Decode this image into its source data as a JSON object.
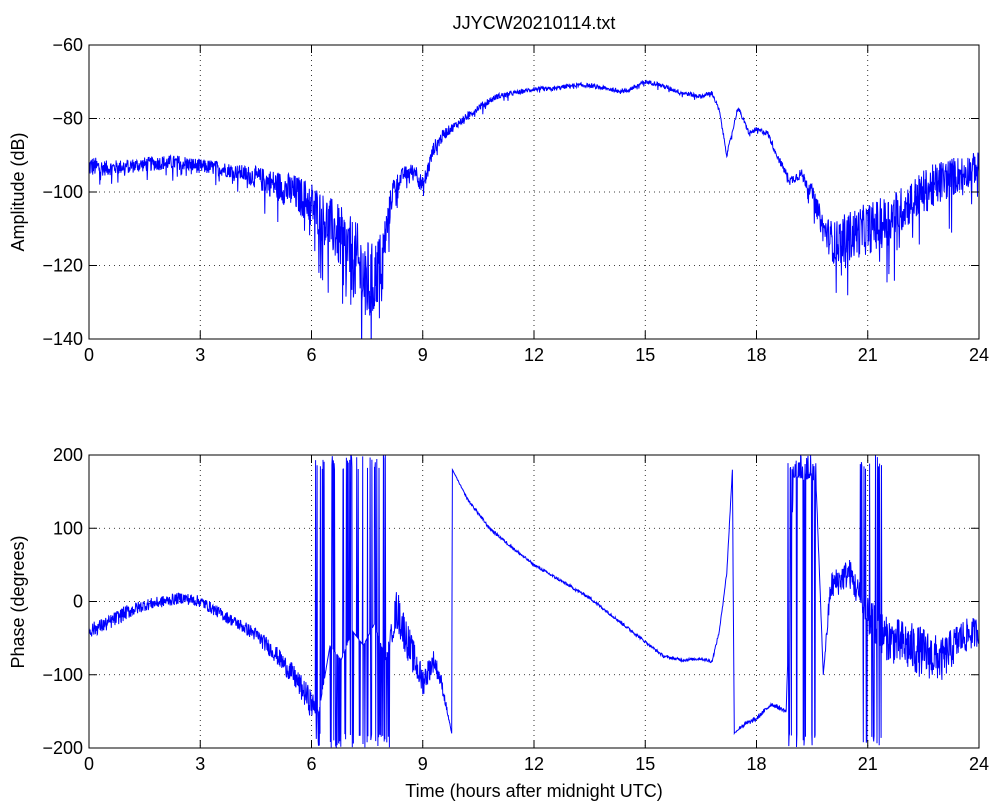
{
  "figure": {
    "title": "JJYCW20210114.txt",
    "colors": {
      "trace": "#0000ff",
      "axes": "#000000",
      "grid": "#000000",
      "background": "#ffffff"
    }
  },
  "chart_data": [
    {
      "type": "line",
      "title": "JJYCW20210114.txt",
      "xlabel": "",
      "ylabel": "Amplitude (dB)",
      "xlim": [
        0,
        24
      ],
      "ylim": [
        -140,
        -60
      ],
      "xticks": [
        0,
        3,
        6,
        9,
        12,
        15,
        18,
        21,
        24
      ],
      "yticks": [
        -140,
        -120,
        -100,
        -80,
        -60
      ],
      "grid": true,
      "series": [
        {
          "x": [
            0,
            0.5,
            1,
            1.5,
            2,
            2.5,
            3,
            3.5,
            4,
            4.5,
            5,
            5.5,
            6,
            6.3,
            6.6,
            7,
            7.3,
            7.6,
            7.9,
            8.2,
            8.5,
            8.8,
            9,
            9.3,
            9.6,
            10,
            10.5,
            11,
            11.5,
            12,
            12.5,
            13,
            13.5,
            14,
            14.5,
            15,
            15.3,
            15.7,
            16,
            16.5,
            16.8,
            17,
            17.2,
            17.5,
            17.8,
            18,
            18.3,
            18.6,
            18.9,
            19.2,
            19.5,
            19.8,
            20.1,
            20.5,
            21,
            21.5,
            22,
            22.5,
            23,
            23.5,
            24
          ],
          "y": [
            -93,
            -93.5,
            -93,
            -92.5,
            -92,
            -92,
            -93,
            -93.5,
            -94.5,
            -96,
            -98,
            -100,
            -103,
            -107,
            -110,
            -116,
            -121,
            -126,
            -118,
            -99,
            -95,
            -94,
            -99,
            -88,
            -84,
            -81,
            -77,
            -74,
            -73,
            -72,
            -72,
            -71,
            -71,
            -72,
            -72.5,
            -70,
            -70.5,
            -72,
            -73,
            -74,
            -73,
            -78,
            -90,
            -77,
            -84,
            -83,
            -84,
            -91,
            -97,
            -95,
            -100,
            -110,
            -114,
            -112,
            -110,
            -108,
            -104,
            -100,
            -97,
            -95,
            -93
          ],
          "noise": [
            3,
            2,
            2,
            2,
            2,
            2,
            2,
            2,
            2,
            3,
            4,
            5,
            6,
            7,
            8,
            10,
            12,
            12,
            8,
            3,
            2,
            2,
            3,
            2,
            1.5,
            1,
            1,
            0.8,
            0.6,
            0.6,
            0.6,
            0.6,
            0.6,
            0.6,
            0.6,
            0.6,
            0.6,
            0.6,
            0.6,
            0.6,
            0.6,
            0.6,
            0.6,
            0.6,
            0.6,
            0.6,
            0.8,
            1,
            1.2,
            1.5,
            2,
            4,
            6,
            7,
            7,
            7,
            6,
            6,
            6,
            5,
            4
          ]
        }
      ]
    },
    {
      "type": "line",
      "title": "",
      "xlabel": "Time (hours after midnight UTC)",
      "ylabel": "Phase (degrees)",
      "xlim": [
        0,
        24
      ],
      "ylim": [
        -200,
        200
      ],
      "xticks": [
        0,
        3,
        6,
        9,
        12,
        15,
        18,
        21,
        24
      ],
      "yticks": [
        -200,
        -100,
        0,
        100,
        200
      ],
      "grid": true,
      "series": [
        {
          "x": [
            0,
            0.5,
            1,
            1.5,
            2,
            2.5,
            3,
            3.5,
            4,
            4.5,
            5,
            5.5,
            6,
            6.2,
            6.5,
            6.8,
            7.1,
            7.4,
            7.7,
            8,
            8.3,
            8.7,
            9,
            9.3,
            9.5,
            9.78,
            9.8,
            10.2,
            10.8,
            11.5,
            12,
            12.5,
            13,
            13.5,
            14,
            14.5,
            15,
            15.5,
            16,
            16.5,
            16.8,
            17,
            17.2,
            17.35,
            17.4,
            17.6,
            18,
            18.4,
            18.8,
            19,
            19.3,
            19.6,
            19.8,
            20,
            20.5,
            21,
            21.5,
            22,
            22.5,
            23,
            23.5,
            24
          ],
          "y": [
            -40,
            -30,
            -15,
            -5,
            0,
            5,
            0,
            -15,
            -30,
            -45,
            -70,
            -100,
            -140,
            -150,
            -60,
            -80,
            -40,
            -60,
            -30,
            -80,
            -10,
            -70,
            -110,
            -80,
            -110,
            -180,
            180,
            140,
            100,
            70,
            50,
            35,
            20,
            5,
            -15,
            -35,
            -55,
            -75,
            -80,
            -78,
            -82,
            -40,
            40,
            180,
            -180,
            -170,
            -160,
            -140,
            -150,
            170,
            170,
            170,
            -100,
            20,
            40,
            -20,
            -50,
            -60,
            -70,
            -80,
            -50,
            -40
          ],
          "noise": [
            10,
            10,
            10,
            8,
            8,
            8,
            8,
            8,
            8,
            10,
            12,
            15,
            20,
            0,
            0,
            0,
            0,
            0,
            0,
            0,
            30,
            25,
            20,
            15,
            10,
            0,
            0,
            2,
            2,
            2,
            2,
            2,
            2,
            2,
            2,
            2,
            2,
            2,
            2,
            2,
            2,
            2,
            2,
            0,
            0,
            3,
            3,
            3,
            3,
            0,
            5,
            5,
            0,
            20,
            20,
            25,
            30,
            35,
            35,
            30,
            25,
            20
          ],
          "wraps": [
            [
              6.1,
              6.4
            ],
            [
              6.5,
              7.1
            ],
            [
              7.1,
              7.6
            ],
            [
              7.6,
              8.1
            ],
            [
              18.85,
              19.6
            ],
            [
              20.8,
              21.4
            ]
          ]
        }
      ]
    }
  ]
}
